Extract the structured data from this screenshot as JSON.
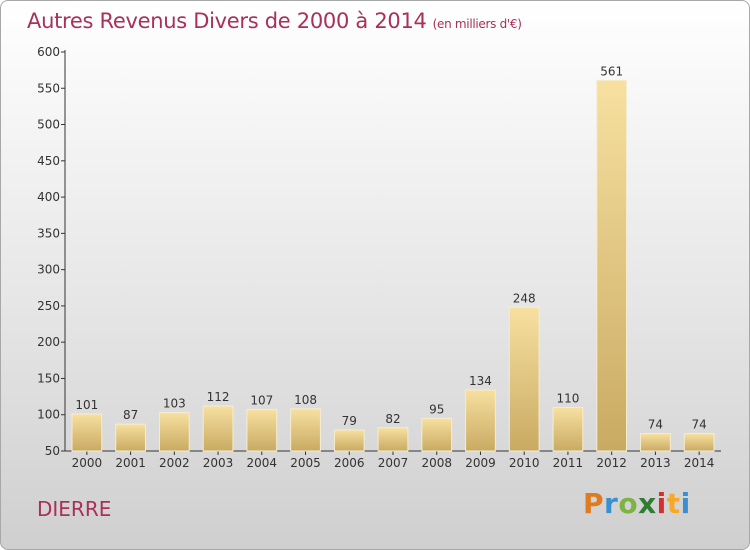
{
  "chart_data": {
    "type": "bar",
    "title": "Autres Revenus Divers de 2000 à 2014",
    "subtitle": "(en milliers d'€)",
    "categories": [
      "2000",
      "2001",
      "2002",
      "2003",
      "2004",
      "2005",
      "2006",
      "2007",
      "2008",
      "2009",
      "2010",
      "2011",
      "2012",
      "2013",
      "2014"
    ],
    "values": [
      101,
      87,
      103,
      112,
      107,
      108,
      79,
      82,
      95,
      134,
      248,
      110,
      561,
      74,
      74
    ],
    "ylim": [
      50,
      600
    ],
    "yticks": [
      50,
      100,
      150,
      200,
      250,
      300,
      350,
      400,
      450,
      500,
      550,
      600
    ],
    "grid": false,
    "bar_color": "#e8cf8a"
  },
  "footer": {
    "town": "DIERRE",
    "logo_letters": [
      "P",
      "r",
      "o",
      "x",
      "i",
      "t",
      "i"
    ]
  }
}
